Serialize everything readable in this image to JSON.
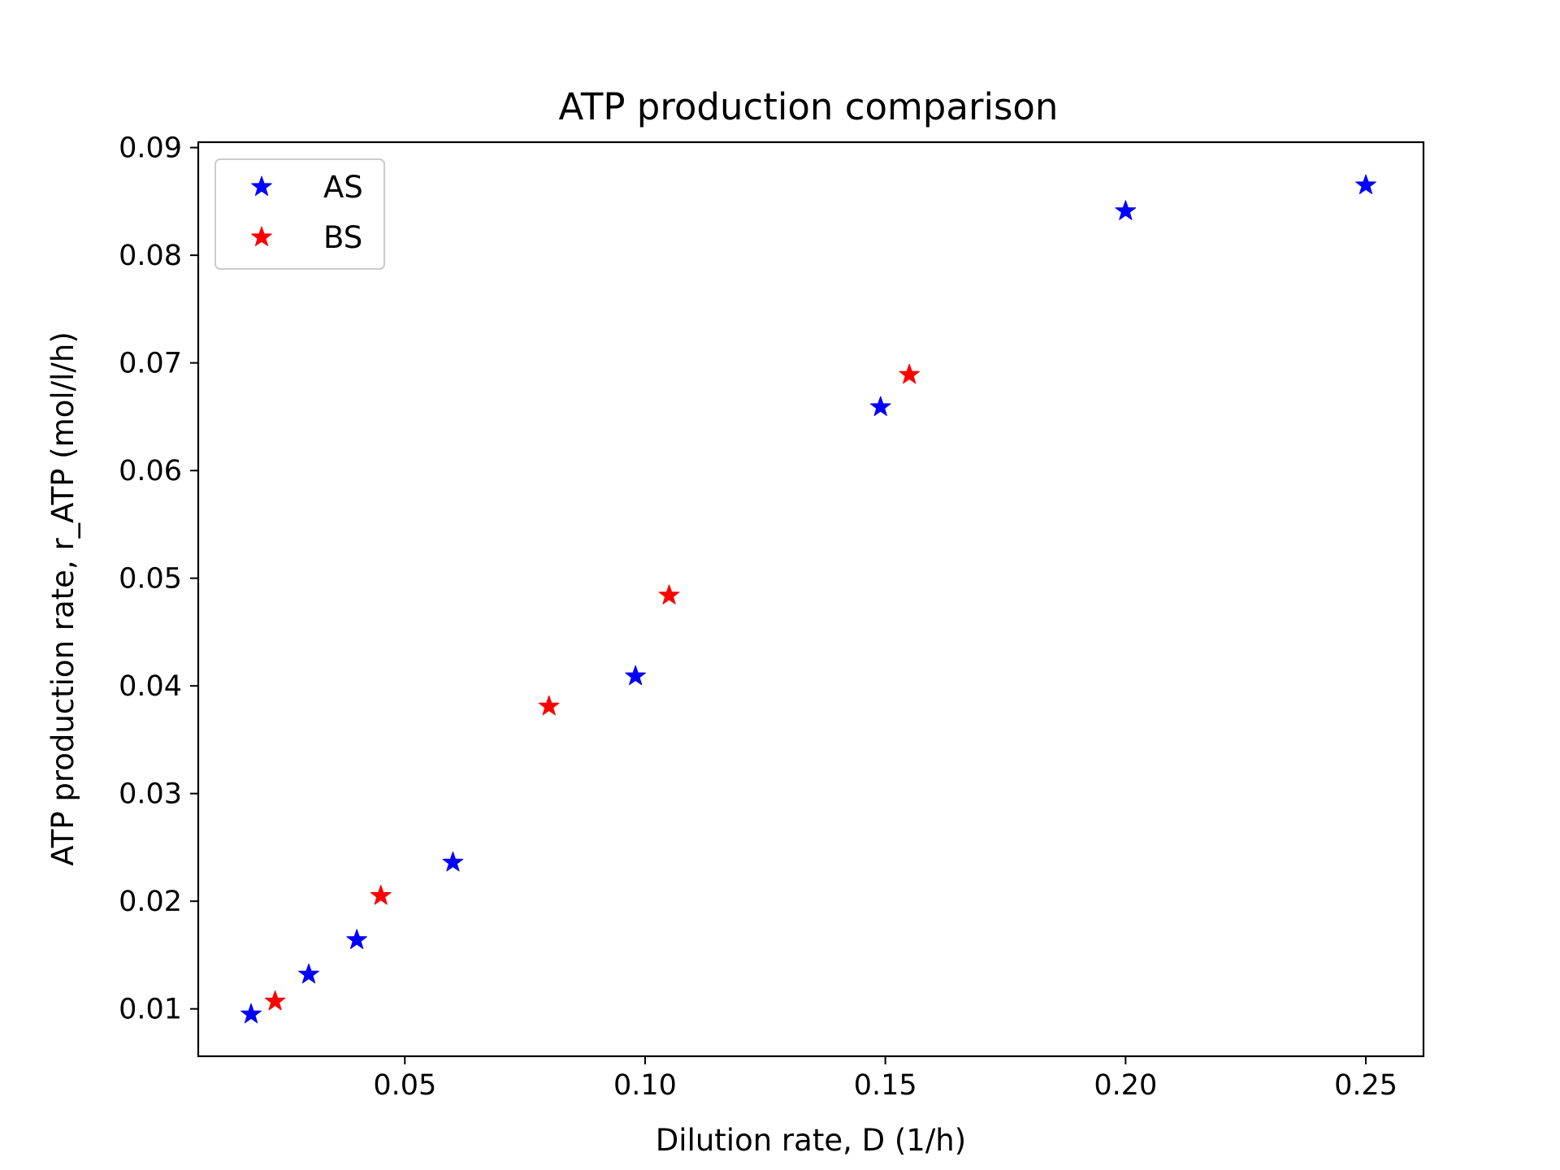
{
  "chart_data": {
    "type": "scatter",
    "title": "ATP production comparison",
    "xlabel": "Dilution rate, D (1/h)",
    "ylabel": "ATP production rate, r_ATP (mol/l/h)",
    "xlim": [
      0.007,
      0.262
    ],
    "ylim": [
      0.0056,
      0.0905
    ],
    "xticks": [
      0.05,
      0.1,
      0.15,
      0.2,
      0.25
    ],
    "xtick_labels": [
      "0.05",
      "0.10",
      "0.15",
      "0.20",
      "0.25"
    ],
    "yticks": [
      0.01,
      0.02,
      0.03,
      0.04,
      0.05,
      0.06,
      0.07,
      0.08,
      0.09
    ],
    "ytick_labels": [
      "0.01",
      "0.02",
      "0.03",
      "0.04",
      "0.05",
      "0.06",
      "0.07",
      "0.08",
      "0.09"
    ],
    "grid": false,
    "legend_position": "top-left",
    "marker": "star",
    "series": [
      {
        "name": "AS",
        "color": "#0000ff",
        "points": [
          {
            "x": 0.018,
            "y": 0.0095
          },
          {
            "x": 0.03,
            "y": 0.0132
          },
          {
            "x": 0.04,
            "y": 0.0164
          },
          {
            "x": 0.06,
            "y": 0.0236
          },
          {
            "x": 0.098,
            "y": 0.0409
          },
          {
            "x": 0.149,
            "y": 0.0659
          },
          {
            "x": 0.2,
            "y": 0.0841
          },
          {
            "x": 0.25,
            "y": 0.0865
          }
        ]
      },
      {
        "name": "BS",
        "color": "#ff0000",
        "points": [
          {
            "x": 0.023,
            "y": 0.0107
          },
          {
            "x": 0.045,
            "y": 0.0205
          },
          {
            "x": 0.08,
            "y": 0.0381
          },
          {
            "x": 0.105,
            "y": 0.0484
          },
          {
            "x": 0.155,
            "y": 0.0689
          }
        ]
      }
    ]
  }
}
